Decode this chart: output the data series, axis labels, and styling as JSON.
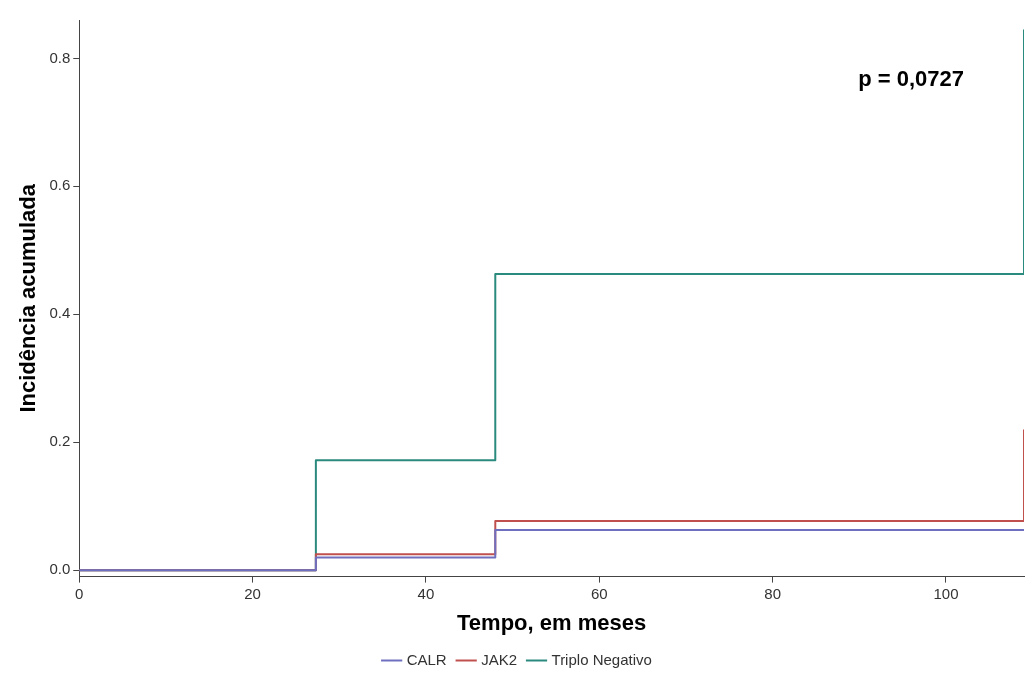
{
  "chart_data": {
    "type": "step",
    "xlabel": "Tempo, em meses",
    "ylabel": "Incidência acumulada",
    "annotations": [
      "p = 0,0727"
    ],
    "xlim": [
      0,
      109
    ],
    "xticks": [
      0,
      20,
      40,
      60,
      80,
      100
    ],
    "ylim": [
      -0.01,
      0.86
    ],
    "yticks": [
      {
        "value": 0,
        "label": "0.0"
      },
      {
        "value": 0.2,
        "label": "0.2"
      },
      {
        "value": 0.4,
        "label": "0.4"
      },
      {
        "value": 0.6,
        "label": "0.6"
      },
      {
        "value": 0.8,
        "label": "0.8"
      }
    ],
    "grid": false,
    "legend": "bottom",
    "marker": "none",
    "line_style": "solid",
    "series": [
      {
        "name": "CALR",
        "color": "#6f6fbf",
        "x": [
          0,
          27.3,
          48,
          109
        ],
        "values": [
          0,
          0.02,
          0.063,
          0.063
        ]
      },
      {
        "name": "JAK2",
        "color": "#c0504d",
        "x": [
          0,
          27.3,
          48,
          109
        ],
        "values": [
          0,
          0.025,
          0.077,
          0.22
        ]
      },
      {
        "name": "Triplo Negativo",
        "color": "#2a8a7d",
        "x": [
          0,
          27.3,
          48,
          109
        ],
        "values": [
          0,
          0.172,
          0.463,
          0.845
        ]
      }
    ]
  }
}
